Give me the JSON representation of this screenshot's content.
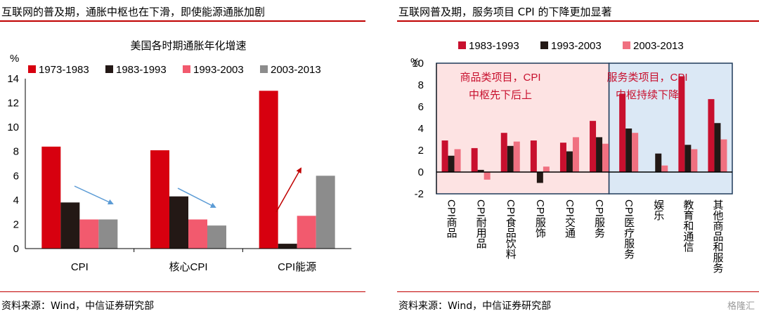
{
  "left": {
    "header": "互联网的普及期，通胀中枢也在下滑，即使能源通胀加剧",
    "source": "资料来源：Wind，中信证券研究部",
    "chart_data": {
      "type": "bar",
      "title": "美国各时期通胀年化增速",
      "ylabel": "%",
      "ylim": [
        0,
        14
      ],
      "yticks": [
        0,
        2,
        4,
        6,
        8,
        10,
        12,
        14
      ],
      "categories": [
        "CPI",
        "核心CPI",
        "CPI能源"
      ],
      "series": [
        {
          "name": "1973-1983",
          "color": "#d7000f",
          "values": [
            8.4,
            8.1,
            13.0
          ]
        },
        {
          "name": "1983-1993",
          "color": "#231815",
          "values": [
            3.8,
            4.3,
            0.4
          ]
        },
        {
          "name": "1993-2003",
          "color": "#f25a6e",
          "values": [
            2.4,
            2.4,
            2.7
          ]
        },
        {
          "name": "2003-2013",
          "color": "#8c8c8c",
          "values": [
            2.4,
            1.9,
            6.0
          ]
        }
      ],
      "legend": "top",
      "grid": false
    }
  },
  "right": {
    "header": "互联网普及期，服务项目 CPI 的下降更加显著",
    "source": "资料来源：Wind，中信证券研究部",
    "chart_data": {
      "type": "bar",
      "title": "",
      "ylabel": "%",
      "ylim": [
        -2,
        10
      ],
      "yticks": [
        -2,
        0,
        2,
        4,
        6,
        8,
        10
      ],
      "categories": [
        "CPI商品",
        "CPI耐用品",
        "CPI食品饮料",
        "CPI服饰",
        "CPI交通",
        "CPI服务",
        "CPI医疗服务",
        "娱乐",
        "教育和通信",
        "其他商品和服务"
      ],
      "series": [
        {
          "name": "1983-1993",
          "color": "#c8102e",
          "values": [
            2.9,
            2.2,
            3.6,
            2.9,
            2.7,
            4.7,
            7.2,
            null,
            8.8,
            6.7
          ]
        },
        {
          "name": "1993-2003",
          "color": "#231815",
          "values": [
            1.5,
            0.2,
            2.4,
            -1.0,
            1.9,
            3.2,
            4.0,
            1.7,
            2.5,
            4.5
          ]
        },
        {
          "name": "2003-2013",
          "color": "#f07080",
          "values": [
            2.1,
            -0.7,
            2.8,
            0.5,
            3.2,
            2.6,
            3.6,
            0.6,
            2.1,
            3.0
          ]
        }
      ],
      "legend": "top",
      "grid": false,
      "annotations": [
        {
          "text_line1": "商品类项目，CPI",
          "text_line2": "中枢先下后上",
          "color": "#c8102e"
        },
        {
          "text_line1": "服务类项目，CPI",
          "text_line2": "中枢持续下降",
          "color": "#c8102e"
        }
      ]
    }
  },
  "watermark": "格隆汇"
}
